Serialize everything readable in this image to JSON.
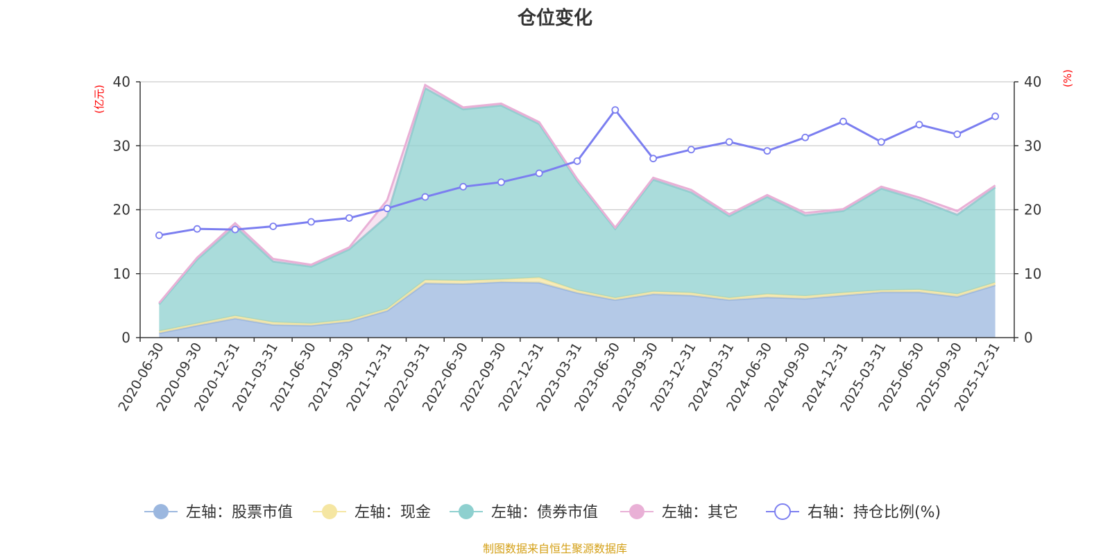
{
  "chart_data": {
    "type": "area",
    "title": "仓位变化",
    "left_axis_unit": "(亿元)",
    "right_axis_unit": "(%)",
    "ylim_left": [
      0,
      40
    ],
    "ylim_right": [
      0,
      40
    ],
    "left_ticks": [
      0,
      10,
      20,
      30,
      40
    ],
    "right_ticks": [
      0,
      10,
      20,
      30,
      40
    ],
    "categories": [
      "2020-06-30",
      "2020-09-30",
      "2020-12-31",
      "2021-03-31",
      "2021-06-30",
      "2021-09-30",
      "2021-12-31",
      "2022-03-31",
      "2022-06-30",
      "2022-09-30",
      "2022-12-31",
      "2023-03-31",
      "2023-06-30",
      "2023-09-30",
      "2023-12-31",
      "2024-03-31",
      "2024-06-30",
      "2024-09-30",
      "2024-12-31",
      "2025-03-31",
      "2025-06-30",
      "2025-09-30",
      "2025-12-31"
    ],
    "series": [
      {
        "name": "左轴：股票市值",
        "axis": "left",
        "stacked": true,
        "color": "#9bb7df",
        "values": [
          0.7,
          1.9,
          3.0,
          2.0,
          1.9,
          2.5,
          4.2,
          8.5,
          8.4,
          8.7,
          8.6,
          7.0,
          5.9,
          6.8,
          6.6,
          5.9,
          6.3,
          6.1,
          6.6,
          7.1,
          7.1,
          6.4,
          8.2
        ]
      },
      {
        "name": "左轴：现金",
        "axis": "left",
        "stacked": true,
        "color": "#f5e6a2",
        "values": [
          0.3,
          0.3,
          0.4,
          0.4,
          0.3,
          0.3,
          0.3,
          0.5,
          0.5,
          0.4,
          0.8,
          0.4,
          0.3,
          0.4,
          0.4,
          0.3,
          0.5,
          0.4,
          0.4,
          0.3,
          0.4,
          0.4,
          0.4
        ]
      },
      {
        "name": "左轴：债券市值",
        "axis": "left",
        "stacked": true,
        "color": "#8ed0cf",
        "values": [
          4.2,
          10.0,
          14.0,
          9.5,
          8.9,
          11.0,
          14.5,
          30.0,
          26.8,
          27.2,
          24.0,
          17.1,
          10.8,
          17.5,
          15.7,
          12.8,
          15.2,
          12.6,
          12.8,
          15.9,
          14.0,
          12.4,
          14.9
        ]
      },
      {
        "name": "左轴：其它",
        "axis": "left",
        "stacked": true,
        "color": "#e9b0d6",
        "values": [
          0.2,
          0.3,
          0.5,
          0.4,
          0.3,
          0.3,
          2.5,
          0.5,
          0.3,
          0.3,
          0.3,
          0.3,
          0.2,
          0.3,
          0.4,
          0.3,
          0.3,
          0.4,
          0.3,
          0.3,
          0.4,
          0.6,
          0.3
        ]
      },
      {
        "name": "右轴：持仓比例(%)",
        "axis": "right",
        "stacked": false,
        "color": "#7b7ef0",
        "values": [
          16.0,
          17.0,
          16.9,
          17.4,
          18.1,
          18.7,
          20.2,
          22.0,
          23.6,
          24.3,
          25.7,
          27.6,
          35.6,
          28.0,
          29.4,
          30.6,
          29.2,
          31.3,
          33.8,
          30.6,
          33.3,
          31.8,
          34.6
        ]
      }
    ],
    "legend_position": "bottom",
    "grid": true
  },
  "footer": {
    "source": "制图数据来自恒生聚源数据库",
    "source_color": "#d4a017"
  },
  "colors": {
    "axis_unit": "#ff0000",
    "gridline": "#cccccc",
    "axis_line": "#333333"
  }
}
